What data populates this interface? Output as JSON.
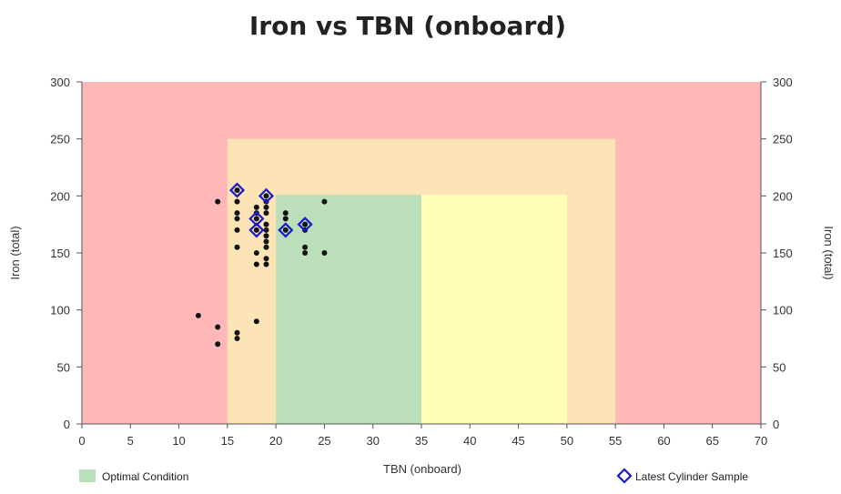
{
  "colors": {
    "outer_zone": "#ffb7b7",
    "middle_zone": "#fde4b7",
    "inner_zone": "#ffffb8",
    "optimal_zone": "#bcdfbb",
    "sample_dot": "#111111",
    "latest_marker": "#1a1ac8",
    "axis": "#555555"
  },
  "chart_data": {
    "type": "scatter",
    "title": "Iron vs TBN (onboard)",
    "xlabel": "TBN (onboard)",
    "ylabel": "Iron (total)",
    "ylabel_right": "Iron (total)",
    "xlim": [
      0,
      70
    ],
    "ylim": [
      0,
      300
    ],
    "x_ticks": [
      0,
      5,
      10,
      15,
      20,
      25,
      30,
      35,
      40,
      45,
      50,
      55,
      60,
      65,
      70
    ],
    "y_ticks": [
      0,
      50,
      100,
      150,
      200,
      250,
      300
    ],
    "zones": [
      {
        "id": "outer",
        "x": [
          0,
          70
        ],
        "y": [
          0,
          300
        ],
        "color": "#ffb7b7"
      },
      {
        "id": "caution",
        "x": [
          15,
          55
        ],
        "y": [
          0,
          250
        ],
        "color": "#fde4b7"
      },
      {
        "id": "acceptable",
        "x": [
          20,
          50
        ],
        "y": [
          0,
          201
        ],
        "color": "#ffffb8"
      },
      {
        "id": "optimal",
        "x": [
          20,
          35
        ],
        "y": [
          0,
          201
        ],
        "color": "#bcdfbb"
      }
    ],
    "series": [
      {
        "id": "samples",
        "points": [
          [
            12,
            95
          ],
          [
            14,
            195
          ],
          [
            14,
            85
          ],
          [
            14,
            70
          ],
          [
            16,
            205
          ],
          [
            16,
            195
          ],
          [
            16,
            185
          ],
          [
            16,
            180
          ],
          [
            16,
            170
          ],
          [
            16,
            155
          ],
          [
            16,
            80
          ],
          [
            16,
            75
          ],
          [
            18,
            190
          ],
          [
            18,
            185
          ],
          [
            18,
            180
          ],
          [
            18,
            170
          ],
          [
            18,
            150
          ],
          [
            18,
            140
          ],
          [
            18,
            90
          ],
          [
            19,
            200
          ],
          [
            19,
            195
          ],
          [
            19,
            190
          ],
          [
            19,
            185
          ],
          [
            19,
            175
          ],
          [
            19,
            170
          ],
          [
            19,
            165
          ],
          [
            19,
            160
          ],
          [
            19,
            155
          ],
          [
            19,
            145
          ],
          [
            19,
            140
          ],
          [
            21,
            185
          ],
          [
            21,
            180
          ],
          [
            21,
            170
          ],
          [
            23,
            175
          ],
          [
            23,
            170
          ],
          [
            23,
            155
          ],
          [
            23,
            150
          ],
          [
            25,
            195
          ],
          [
            25,
            150
          ]
        ]
      },
      {
        "id": "latest",
        "name": "Latest Cylinder Sample",
        "points": [
          [
            16,
            205
          ],
          [
            19,
            200
          ],
          [
            18,
            180
          ],
          [
            18,
            170
          ],
          [
            21,
            170
          ],
          [
            23,
            175
          ]
        ]
      }
    ],
    "legend": [
      {
        "label": "Optimal Condition",
        "swatch": "square",
        "color": "#bcdfbb",
        "position": "bottom-left"
      },
      {
        "label": "Latest Cylinder Sample",
        "swatch": "diamond",
        "color": "#1a1ac8",
        "position": "bottom-right"
      }
    ]
  }
}
